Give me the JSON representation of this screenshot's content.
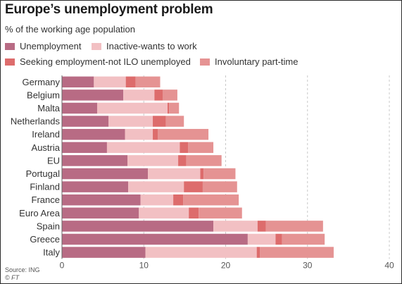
{
  "header": {
    "title": "Europe’s unemployment problem",
    "subtitle": "% of the working age population"
  },
  "footer": {
    "source": "Source: ING",
    "credit": "© FT"
  },
  "chart_data": {
    "type": "bar",
    "orientation": "horizontal",
    "stacked": true,
    "categories": [
      "Germany",
      "Belgium",
      "Malta",
      "Netherlands",
      "Ireland",
      "Austria",
      "EU",
      "Portugal",
      "Finland",
      "France",
      "Euro Area",
      "Spain",
      "Greece",
      "Italy"
    ],
    "series": [
      {
        "name": "Unemployment",
        "color": "#b86b84",
        "values": [
          3.9,
          7.5,
          4.3,
          5.7,
          7.7,
          5.5,
          8.0,
          10.5,
          8.1,
          9.6,
          9.4,
          18.5,
          22.7,
          10.2
        ]
      },
      {
        "name": "Inactive-wants to work",
        "color": "#f2c0c3",
        "values": [
          3.9,
          3.8,
          8.6,
          5.4,
          3.4,
          8.9,
          6.2,
          6.4,
          6.8,
          4.0,
          6.1,
          5.4,
          3.4,
          13.6
        ]
      },
      {
        "name": "Seeking employment-not ILO unemployed",
        "color": "#dd6c6c",
        "values": [
          1.2,
          1.0,
          0.2,
          1.6,
          0.6,
          1.0,
          1.0,
          0.4,
          2.3,
          1.2,
          1.2,
          1.0,
          0.8,
          0.4
        ]
      },
      {
        "name": "Involuntary part-time",
        "color": "#e59393",
        "values": [
          3.0,
          1.8,
          1.2,
          2.2,
          6.2,
          3.1,
          4.3,
          3.9,
          4.2,
          6.8,
          5.3,
          7.0,
          5.2,
          9.0
        ]
      }
    ],
    "xlim": [
      0,
      40
    ],
    "xticks": [
      0,
      10,
      20,
      30,
      40
    ],
    "grid": true,
    "legend_position": "top"
  }
}
